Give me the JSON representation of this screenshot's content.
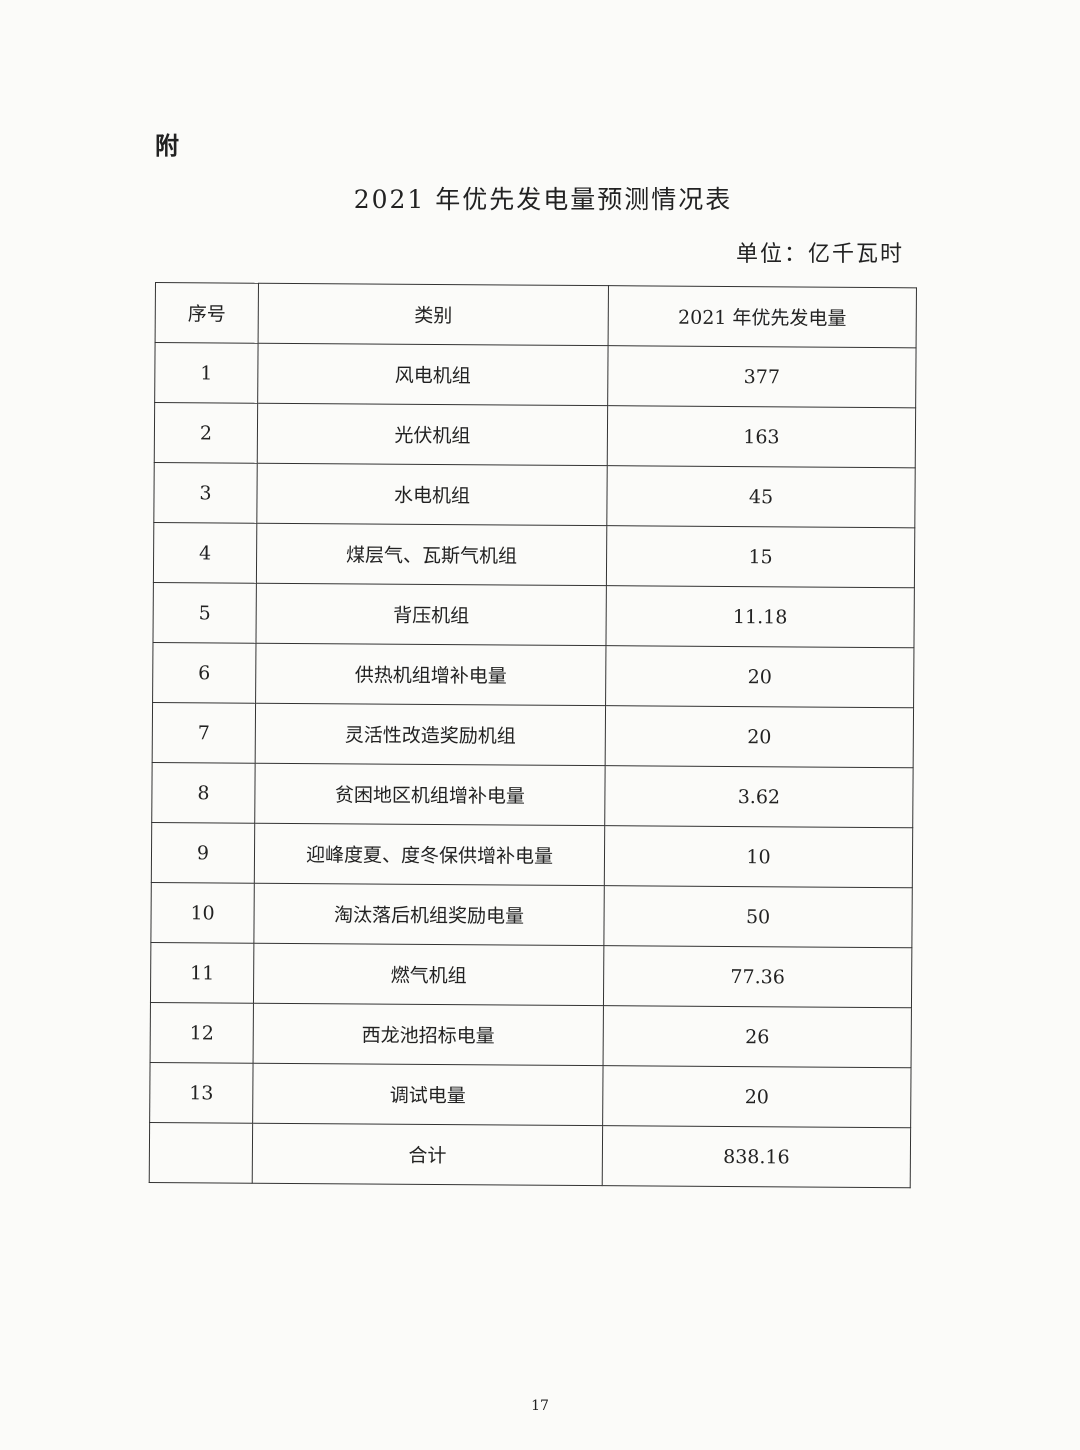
{
  "attachment_label": "附",
  "title": "2021 年优先发电量预测情况表",
  "unit": "单位：亿千瓦时",
  "table": {
    "headers": [
      "序号",
      "类别",
      "2021 年优先发电量"
    ],
    "rows": [
      [
        "1",
        "风电机组",
        "377"
      ],
      [
        "2",
        "光伏机组",
        "163"
      ],
      [
        "3",
        "水电机组",
        "45"
      ],
      [
        "4",
        "煤层气、瓦斯气机组",
        "15"
      ],
      [
        "5",
        "背压机组",
        "11.18"
      ],
      [
        "6",
        "供热机组增补电量",
        "20"
      ],
      [
        "7",
        "灵活性改造奖励机组",
        "20"
      ],
      [
        "8",
        "贫困地区机组增补电量",
        "3.62"
      ],
      [
        "9",
        "迎峰度夏、度冬保供增补电量",
        "10"
      ],
      [
        "10",
        "淘汰落后机组奖励电量",
        "50"
      ],
      [
        "11",
        "燃气机组",
        "77.36"
      ],
      [
        "12",
        "西龙池招标电量",
        "26"
      ],
      [
        "13",
        "调试电量",
        "20"
      ],
      [
        "",
        "合计",
        "838.16"
      ]
    ]
  },
  "page_number": "17"
}
